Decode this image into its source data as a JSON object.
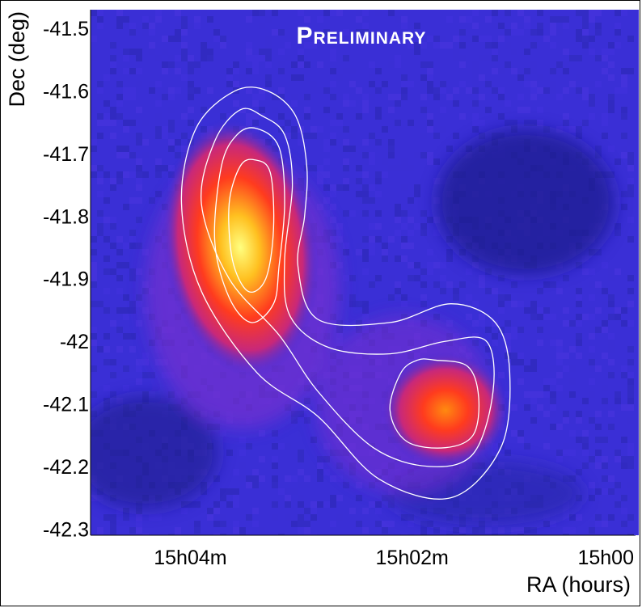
{
  "chart_data": {
    "type": "heatmap",
    "title": "Preliminary",
    "xlabel": "RA (hours)",
    "ylabel": "Dec (deg)",
    "x_tick_labels": [
      "15h04m",
      "15h02m",
      "15h00"
    ],
    "y_ticks": [
      -41.5,
      -41.6,
      -41.7,
      -41.8,
      -41.9,
      -42.0,
      -42.1,
      -42.2,
      -42.3
    ],
    "y_tick_labels": [
      "-41.5",
      "-41.6",
      "-41.7",
      "-41.8",
      "-41.9",
      "-42",
      "-42.1",
      "-42.2",
      "-42.3"
    ],
    "ylim": [
      -42.31,
      -41.47
    ],
    "x_range_minutes_before_15h": [
      4.9,
      0.0
    ],
    "x_tick_minutes": [
      4,
      2,
      0
    ],
    "colormap": [
      "#1a1a80",
      "#3a2fd6",
      "#7a2fd0",
      "#d8305a",
      "#ff3b1e",
      "#ffb020",
      "#ffff80"
    ],
    "background_color": "#3a2fd6",
    "contour_color": "#ffffff",
    "hotspots": [
      {
        "ra_min": 3.55,
        "dec": -41.85,
        "peak": 1.0
      },
      {
        "ra_min": 1.7,
        "dec": -42.11,
        "peak": 0.78
      }
    ],
    "contours": [
      {
        "level": "outer",
        "points": [
          [
            3.3,
            -41.6
          ],
          [
            3.05,
            -41.64
          ],
          [
            2.95,
            -41.72
          ],
          [
            2.97,
            -41.8
          ],
          [
            3.03,
            -41.88
          ],
          [
            2.85,
            -41.965
          ],
          [
            2.2,
            -41.97
          ],
          [
            1.65,
            -41.94
          ],
          [
            1.25,
            -41.97
          ],
          [
            1.12,
            -42.05
          ],
          [
            1.2,
            -42.17
          ],
          [
            1.65,
            -42.25
          ],
          [
            2.3,
            -42.22
          ],
          [
            2.85,
            -42.12
          ],
          [
            3.4,
            -42.05
          ],
          [
            3.9,
            -41.92
          ],
          [
            4.08,
            -41.78
          ],
          [
            3.95,
            -41.66
          ],
          [
            3.6,
            -41.6
          ]
        ]
      },
      {
        "level": "mid",
        "points": [
          [
            3.35,
            -41.64
          ],
          [
            3.15,
            -41.67
          ],
          [
            3.08,
            -41.75
          ],
          [
            3.15,
            -41.87
          ],
          [
            3.1,
            -41.96
          ],
          [
            2.75,
            -42.01
          ],
          [
            2.2,
            -42.02
          ],
          [
            1.7,
            -42.0
          ],
          [
            1.33,
            -42.0
          ],
          [
            1.27,
            -42.08
          ],
          [
            1.45,
            -42.18
          ],
          [
            1.85,
            -42.2
          ],
          [
            2.35,
            -42.17
          ],
          [
            2.85,
            -42.08
          ],
          [
            3.2,
            -41.99
          ],
          [
            3.65,
            -41.9
          ],
          [
            3.9,
            -41.78
          ],
          [
            3.78,
            -41.68
          ],
          [
            3.55,
            -41.63
          ]
        ]
      },
      {
        "level": "inner-left-1",
        "points": [
          [
            3.4,
            -41.66
          ],
          [
            3.2,
            -41.69
          ],
          [
            3.15,
            -41.78
          ],
          [
            3.2,
            -41.88
          ],
          [
            3.25,
            -41.94
          ],
          [
            3.45,
            -41.97
          ],
          [
            3.65,
            -41.93
          ],
          [
            3.78,
            -41.84
          ],
          [
            3.72,
            -41.72
          ],
          [
            3.58,
            -41.67
          ]
        ]
      },
      {
        "level": "inner-left-2",
        "points": [
          [
            3.42,
            -41.71
          ],
          [
            3.28,
            -41.73
          ],
          [
            3.25,
            -41.82
          ],
          [
            3.32,
            -41.9
          ],
          [
            3.48,
            -41.92
          ],
          [
            3.62,
            -41.87
          ],
          [
            3.65,
            -41.78
          ],
          [
            3.55,
            -41.72
          ]
        ]
      },
      {
        "level": "inner-right",
        "points": [
          [
            1.8,
            -42.03
          ],
          [
            1.5,
            -42.04
          ],
          [
            1.4,
            -42.09
          ],
          [
            1.45,
            -42.15
          ],
          [
            1.7,
            -42.17
          ],
          [
            2.05,
            -42.16
          ],
          [
            2.2,
            -42.11
          ],
          [
            2.1,
            -42.05
          ],
          [
            1.95,
            -42.03
          ]
        ]
      }
    ]
  }
}
